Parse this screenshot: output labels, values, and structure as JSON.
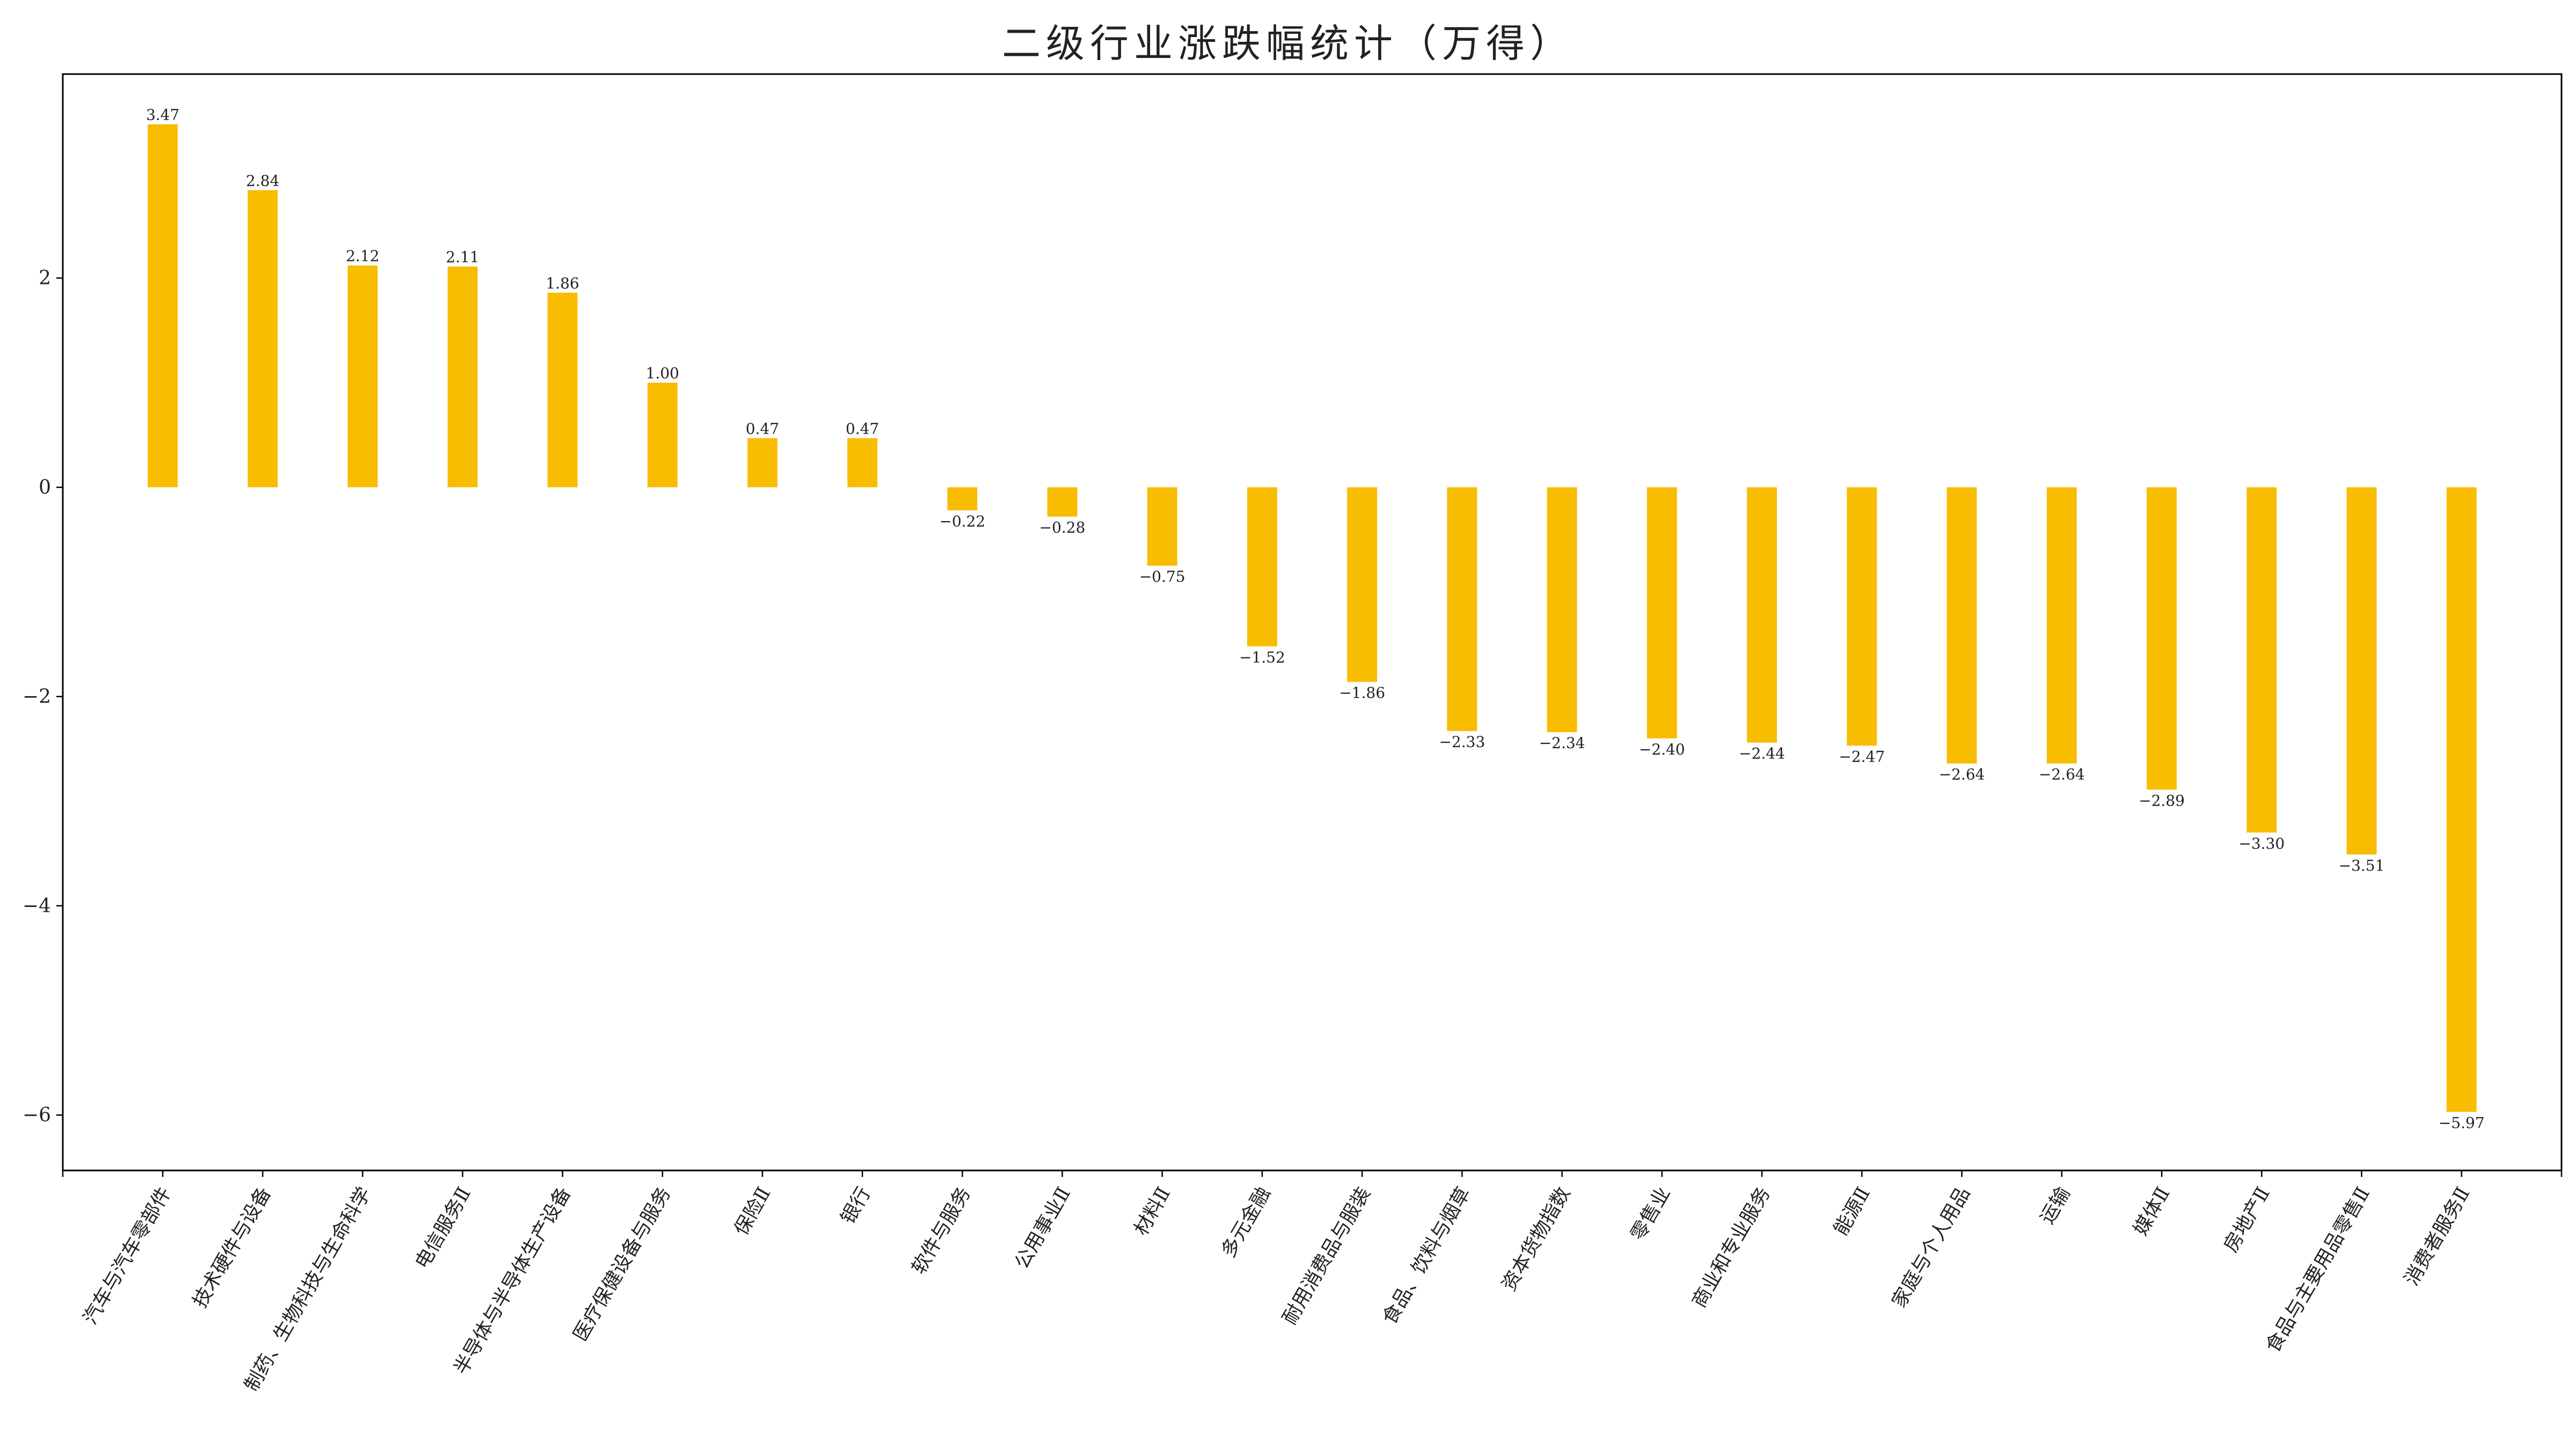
{
  "chart_data": {
    "type": "bar",
    "title": "二级行业涨跌幅统计（万得）",
    "xlabel": "",
    "ylabel": "",
    "categories": [
      "汽车与汽车零部件",
      "技术硬件与设备",
      "制药、生物科技与生命科学",
      "电信服务Ⅱ",
      "半导体与半导体生产设备",
      "医疗保健设备与服务",
      "保险Ⅱ",
      "银行",
      "软件与服务",
      "公用事业Ⅱ",
      "材料Ⅱ",
      "多元金融",
      "耐用消费品与服装",
      "食品、饮料与烟草",
      "资本货物指数",
      "零售业",
      "商业和专业服务",
      "能源Ⅱ",
      "家庭与个人用品",
      "运输",
      "媒体Ⅱ",
      "房地产Ⅱ",
      "食品与主要用品零售Ⅱ",
      "消费者服务Ⅱ"
    ],
    "values": [
      3.47,
      2.84,
      2.12,
      2.11,
      1.86,
      1.0,
      0.47,
      0.47,
      -0.22,
      -0.28,
      -0.75,
      -1.52,
      -1.86,
      -2.33,
      -2.34,
      -2.4,
      -2.44,
      -2.47,
      -2.64,
      -2.64,
      -2.89,
      -3.3,
      -3.51,
      -5.97
    ],
    "value_labels": [
      "3.47",
      "2.84",
      "2.12",
      "2.11",
      "1.86",
      "1.00",
      "0.47",
      "0.47",
      "−0.22",
      "−0.28",
      "−0.75",
      "−1.52",
      "−1.86",
      "−2.33",
      "−2.34",
      "−2.40",
      "−2.44",
      "−2.47",
      "−2.64",
      "−2.64",
      "−2.89",
      "−3.30",
      "−3.51",
      "−5.97"
    ],
    "yticks": [
      2,
      0,
      -2,
      -4,
      -6
    ],
    "ytick_labels": [
      "2",
      "0",
      "−2",
      "−4",
      "−6"
    ],
    "ylim": [
      -6.53,
      3.95
    ],
    "xlim": [
      -1.0,
      24.0
    ],
    "bar_color": "#F8BC00",
    "grid": false,
    "legend": "none"
  }
}
